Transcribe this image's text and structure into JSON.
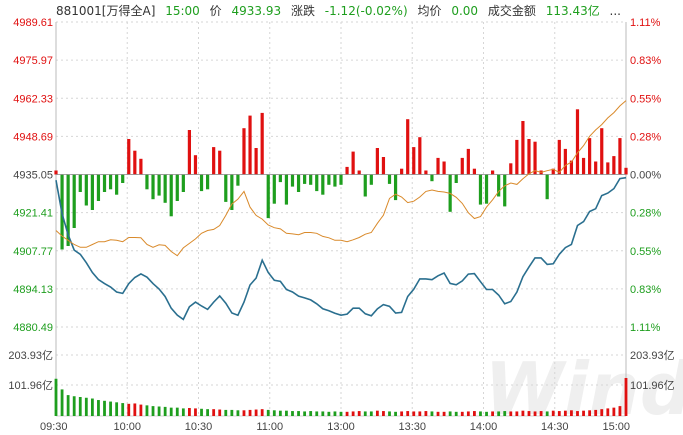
{
  "header": {
    "code": "881001[万得全A]",
    "time": "15:00",
    "price_label": "价",
    "price": "4933.93",
    "change_label": "涨跌",
    "change": "-1.12(-0.02%)",
    "avg_label": "均价",
    "avg": "0.00",
    "amount_label": "成交金额",
    "amount": "113.43亿",
    "more": "..."
  },
  "colors": {
    "up": "#e01010",
    "down": "#1e9e1e",
    "price_line": "#2a6f8f",
    "avg_line": "#d98a2b",
    "grid": "#d6d6d6",
    "neutral_text": "#444444"
  },
  "watermark": "Wind",
  "chart_data": {
    "type": "line",
    "ylim": [
      4880.49,
      4989.61
    ],
    "y_ticks_left": [
      "4989.61",
      "4975.97",
      "4962.33",
      "4948.69",
      "4935.05",
      "4921.41",
      "4907.77",
      "4894.13",
      "4880.49"
    ],
    "y_ticks_right": [
      "1.11%",
      "0.83%",
      "0.55%",
      "0.28%",
      "0.00%",
      "0.28%",
      "0.55%",
      "0.83%",
      "1.11%"
    ],
    "volume_ticks_left": [
      "203.93亿",
      "101.96亿"
    ],
    "volume_ticks_right": [
      "203.93亿",
      "101.96亿"
    ],
    "x_ticks": [
      "09:30",
      "10:00",
      "10:30",
      "11:00",
      "13:00",
      "13:30",
      "14:00",
      "14:30",
      "15:00"
    ],
    "prev_close": 4935.05,
    "series": [
      {
        "values": [
          4933.0,
          4921.0,
          4913.5,
          4908.0,
          4906.5,
          4903.5,
          4900.0,
          4897.5,
          4896.0,
          4894.8,
          4893.0,
          4892.5,
          4896.0,
          4898.2,
          4899.5,
          4898.3,
          4896.0,
          4894.1,
          4891.4,
          4887.2,
          4884.7,
          4883.2,
          4887.7,
          4889.4,
          4888.0,
          4886.8,
          4889.4,
          4891.6,
          4889.0,
          4885.5,
          4884.7,
          4889.4,
          4895.5,
          4898.0,
          4904.4,
          4900.0,
          4897.2,
          4896.8,
          4893.9,
          4893.0,
          4891.5,
          4890.9,
          4890.2,
          4888.8,
          4887.0,
          4886.3,
          4885.4,
          4884.7,
          4885.1,
          4887.2,
          4887.2,
          4885.2,
          4884.5,
          4887.0,
          4888.5,
          4887.9,
          4885.5,
          4885.7,
          4891.4,
          4894.0,
          4897.7,
          4897.7,
          4897.4,
          4898.8,
          4899.8,
          4896.1,
          4895.6,
          4897.0,
          4899.4,
          4899.6,
          4896.7,
          4893.9,
          4893.9,
          4891.9,
          4888.8,
          4889.6,
          4893.0,
          4898.5,
          4902.0,
          4905.2,
          4905.2,
          4902.9,
          4903.1,
          4906.5,
          4908.9,
          4910.0,
          4916.8,
          4918.2,
          4921.8,
          4922.8,
          4927.5,
          4928.4,
          4930.0,
          4933.6,
          4933.9
        ]
      },
      {
        "values": [
          4915.0,
          4913.0,
          4911.5,
          4910.0,
          4909.0,
          4909.0,
          4910.0,
          4911.0,
          4911.0,
          4911.7,
          4911.5,
          4911.0,
          4912.5,
          4912.5,
          4912.4,
          4910.0,
          4909.0,
          4909.9,
          4909.7,
          4907.5,
          4906.0,
          4908.8,
          4910.4,
          4912.0,
          4914.0,
          4915.0,
          4915.4,
          4916.8,
          4920.4,
          4924.5,
          4926.2,
          4929.0,
          4923.4,
          4920.4,
          4919.1,
          4917.0,
          4916.0,
          4915.6,
          4914.0,
          4913.8,
          4913.5,
          4914.3,
          4914.3,
          4914.0,
          4912.9,
          4912.4,
          4911.5,
          4911.5,
          4911.0,
          4911.7,
          4912.5,
          4913.7,
          4914.3,
          4917.6,
          4920.5,
          4926.5,
          4928.0,
          4927.0,
          4925.0,
          4925.5,
          4927.0,
          4929.0,
          4929.5,
          4929.0,
          4928.8,
          4928.3,
          4926.9,
          4924.7,
          4921.4,
          4919.3,
          4920.0,
          4923.4,
          4926.0,
          4929.0,
          4931.0,
          4932.0,
          4931.5,
          4933.5,
          4935.3,
          4936.4,
          4935.8,
          4936.4,
          4936.9,
          4935.8,
          4938.3,
          4939.5,
          4942.8,
          4945.4,
          4948.7,
          4951.0,
          4952.9,
          4955.3,
          4957.2,
          4959.6,
          4961.5
        ]
      }
    ],
    "volume_values": [
      98,
      70,
      55,
      52,
      50,
      48,
      46,
      42,
      40,
      38,
      36,
      34,
      32,
      33,
      30,
      28,
      26,
      25,
      24,
      22,
      22,
      20,
      21,
      20,
      19,
      18,
      18,
      17,
      16,
      16,
      15,
      15,
      16,
      17,
      18,
      16,
      15,
      14,
      14,
      13,
      13,
      12,
      13,
      12,
      12,
      11,
      12,
      11,
      11,
      12,
      13,
      12,
      12,
      14,
      13,
      12,
      11,
      12,
      13,
      12,
      12,
      13,
      12,
      11,
      11,
      12,
      11,
      11,
      12,
      13,
      12,
      11,
      12,
      12,
      13,
      12,
      12,
      14,
      13,
      12,
      13,
      12,
      14,
      13,
      14,
      15,
      13,
      14,
      15,
      16,
      18,
      20,
      22,
      26,
      100
    ]
  }
}
